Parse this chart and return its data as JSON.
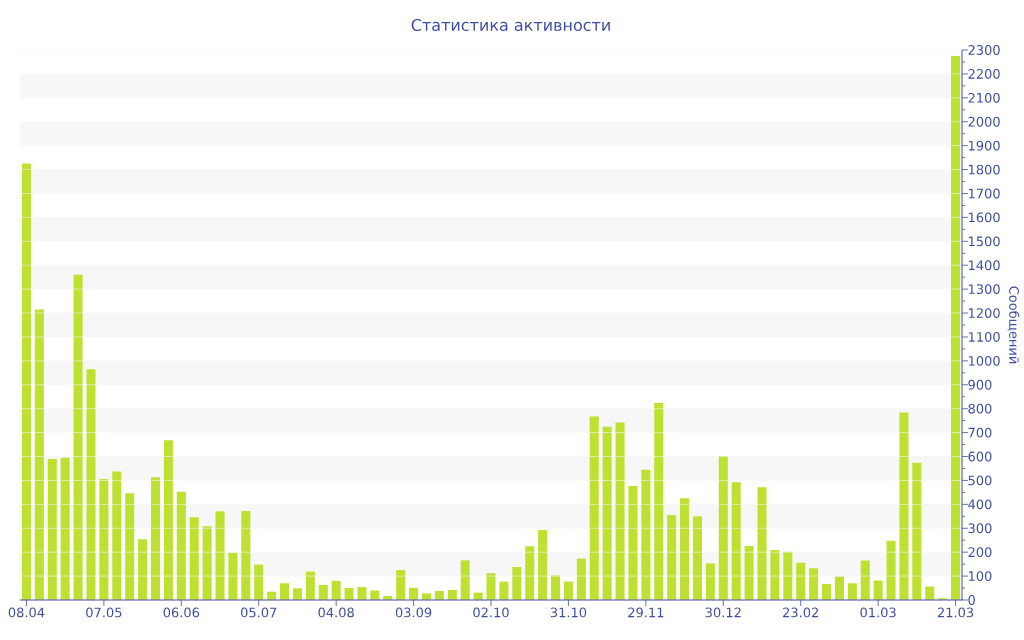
{
  "chart_data": {
    "type": "bar",
    "title": "Статистика активности",
    "ylabel": "Сообщений",
    "categories": [
      "08.04",
      null,
      null,
      null,
      null,
      null,
      "07.05",
      null,
      null,
      null,
      null,
      null,
      "06.06",
      null,
      null,
      null,
      null,
      null,
      "05.07",
      null,
      null,
      null,
      null,
      null,
      "04.08",
      null,
      null,
      null,
      null,
      null,
      "03.09",
      null,
      null,
      null,
      null,
      null,
      "02.10",
      null,
      null,
      null,
      null,
      null,
      "31.10",
      null,
      null,
      null,
      null,
      null,
      "29.11",
      null,
      null,
      null,
      null,
      null,
      "30.12",
      null,
      null,
      null,
      null,
      null,
      "23.02",
      null,
      null,
      null,
      null,
      null,
      "01.03",
      null,
      null,
      null,
      null,
      null,
      "21.03"
    ],
    "values": [
      1825,
      1215,
      590,
      595,
      1360,
      965,
      506,
      537,
      446,
      254,
      513,
      668,
      453,
      346,
      308,
      371,
      198,
      372,
      148,
      35,
      70,
      49,
      119,
      63,
      80,
      50,
      54,
      40,
      17,
      125,
      51,
      28,
      38,
      42,
      166,
      31,
      112,
      77,
      138,
      225,
      293,
      103,
      77,
      173,
      767,
      724,
      742,
      477,
      545,
      824,
      355,
      425,
      350,
      153,
      602,
      492,
      226,
      471,
      209,
      202,
      156,
      133,
      67,
      98,
      70,
      165,
      82,
      248,
      784,
      574,
      56,
      7,
      2275
    ],
    "color": "#bde031",
    "ylim": [
      0,
      2300
    ],
    "yticks": [
      0,
      100,
      200,
      300,
      400,
      500,
      600,
      700,
      800,
      900,
      1000,
      1100,
      1200,
      1300,
      1400,
      1500,
      1600,
      1700,
      1800,
      1900,
      2000,
      2100,
      2200,
      2300
    ],
    "grid": "y"
  }
}
